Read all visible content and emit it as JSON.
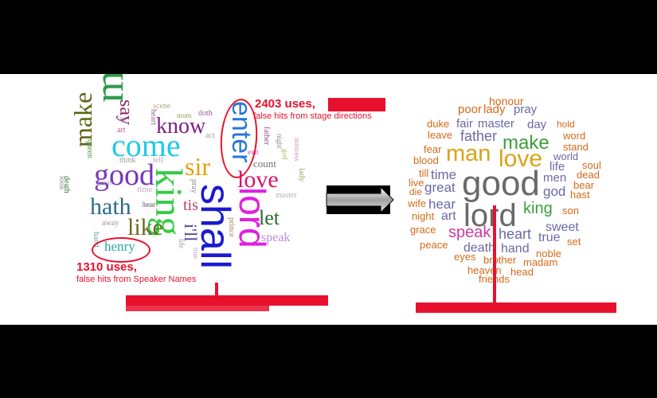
{
  "left_cloud": {
    "words": [
      {
        "t": "man",
        "c": "#2f9a4d"
      },
      {
        "t": "make",
        "c": "#5c6410"
      },
      {
        "t": "say",
        "c": "#8a2470"
      },
      {
        "t": "come",
        "c": "#1ecbe6"
      },
      {
        "t": "know",
        "c": "#7a1f87"
      },
      {
        "t": "good",
        "c": "#7a35b8"
      },
      {
        "t": "sir",
        "c": "#e3a20c"
      },
      {
        "t": "enter",
        "c": "#2678d8"
      },
      {
        "t": "love",
        "c": "#d4176a"
      },
      {
        "t": "hath",
        "c": "#2d6b8a"
      },
      {
        "t": "king",
        "c": "#33cc44"
      },
      {
        "t": "shall",
        "c": "#1a1ad0"
      },
      {
        "t": "lord",
        "c": "#e01fe0"
      },
      {
        "t": "let",
        "c": "#2e6a2e"
      },
      {
        "t": "like",
        "c": "#6a6a20"
      },
      {
        "t": "tis",
        "c": "#b9426a"
      },
      {
        "t": "i'll",
        "c": "#4a4aa0"
      },
      {
        "t": "speak",
        "c": "#b58de0"
      },
      {
        "t": "henry",
        "c": "#2aa6a6"
      },
      {
        "t": "scene",
        "c": "#b0a880"
      },
      {
        "t": "mum",
        "c": "#a0a060"
      },
      {
        "t": "doth",
        "c": "#9a5aa0"
      },
      {
        "t": "heart",
        "c": "#9a6a9a"
      },
      {
        "t": "ay",
        "c": "#9a8aa0"
      },
      {
        "t": "art",
        "c": "#c06090"
      },
      {
        "t": "queen",
        "c": "#4a9a4a"
      },
      {
        "t": "think",
        "c": "#9a9a9a"
      },
      {
        "t": "tell",
        "c": "#c0a0c0"
      },
      {
        "t": "act",
        "c": "#a0a0a0"
      },
      {
        "t": "time",
        "c": "#c0b0c0"
      },
      {
        "t": "lady",
        "c": "#a0a060"
      },
      {
        "t": "father",
        "c": "#9a4a9a"
      },
      {
        "t": "exit",
        "c": "#c040c0"
      },
      {
        "t": "night",
        "c": "#8a8a8a"
      },
      {
        "t": "god",
        "c": "#b0b050"
      },
      {
        "t": "count",
        "c": "#707070"
      },
      {
        "t": "mistress",
        "c": "#d090b0"
      },
      {
        "t": "master",
        "c": "#b0b0b0"
      },
      {
        "t": "pray",
        "c": "#8a8a8a"
      },
      {
        "t": "prince",
        "c": "#a08a60"
      },
      {
        "t": "true",
        "c": "#c0a0c0"
      },
      {
        "t": "hear",
        "c": "#a0a0a0"
      },
      {
        "t": "look",
        "c": "#909090"
      },
      {
        "t": "death",
        "c": "#3a7a3a"
      },
      {
        "t": "away",
        "c": "#a09090"
      },
      {
        "t": "hand",
        "c": "#7aa0a0"
      },
      {
        "t": "life",
        "c": "#9a9a9a"
      },
      {
        "t": "great",
        "c": "#b0a0b0"
      },
      {
        "t": "hear",
        "c": "#9a9a9a"
      }
    ],
    "annotations": {
      "top_count": "2403 uses,",
      "top_desc": "false hits from stage directions",
      "bottom_count": "1310 uses,",
      "bottom_desc": "false hits from Speaker Names"
    }
  },
  "arrow_icon": "right-arrow-icon",
  "right_cloud": {
    "words": [
      {
        "t": "honour",
        "c": "#d46a1a"
      },
      {
        "t": "poor",
        "c": "#d46a1a"
      },
      {
        "t": "lady",
        "c": "#d46a1a"
      },
      {
        "t": "pray",
        "c": "#6a6aa6"
      },
      {
        "t": "duke",
        "c": "#d46a1a"
      },
      {
        "t": "fair",
        "c": "#6a6aa6"
      },
      {
        "t": "master",
        "c": "#6a6aa6"
      },
      {
        "t": "day",
        "c": "#6a6aa6"
      },
      {
        "t": "hold",
        "c": "#d46a1a"
      },
      {
        "t": "leave",
        "c": "#d46a1a"
      },
      {
        "t": "father",
        "c": "#6a6aa6"
      },
      {
        "t": "make",
        "c": "#3aa03a"
      },
      {
        "t": "word",
        "c": "#d46a1a"
      },
      {
        "t": "fear",
        "c": "#d46a1a"
      },
      {
        "t": "man",
        "c": "#d9a21a"
      },
      {
        "t": "love",
        "c": "#d9a21a"
      },
      {
        "t": "stand",
        "c": "#d46a1a"
      },
      {
        "t": "blood",
        "c": "#d46a1a"
      },
      {
        "t": "world",
        "c": "#6a6aa6"
      },
      {
        "t": "life",
        "c": "#6a6aa6"
      },
      {
        "t": "soul",
        "c": "#d46a1a"
      },
      {
        "t": "till",
        "c": "#d46a1a"
      },
      {
        "t": "time",
        "c": "#6a6aa6"
      },
      {
        "t": "good",
        "c": "#6a6a6a"
      },
      {
        "t": "men",
        "c": "#6a6aa6"
      },
      {
        "t": "dead",
        "c": "#d46a1a"
      },
      {
        "t": "live",
        "c": "#d46a1a"
      },
      {
        "t": "bear",
        "c": "#d46a1a"
      },
      {
        "t": "die",
        "c": "#d46a1a"
      },
      {
        "t": "great",
        "c": "#6a6aa6"
      },
      {
        "t": "god",
        "c": "#6a6aa6"
      },
      {
        "t": "hast",
        "c": "#d46a1a"
      },
      {
        "t": "wife",
        "c": "#d46a1a"
      },
      {
        "t": "hear",
        "c": "#6a6aa6"
      },
      {
        "t": "king",
        "c": "#3aa03a"
      },
      {
        "t": "son",
        "c": "#d46a1a"
      },
      {
        "t": "night",
        "c": "#d46a1a"
      },
      {
        "t": "art",
        "c": "#6a6aa6"
      },
      {
        "t": "lord",
        "c": "#6a6a6a"
      },
      {
        "t": "sweet",
        "c": "#6a6aa6"
      },
      {
        "t": "grace",
        "c": "#d46a1a"
      },
      {
        "t": "speak",
        "c": "#c93aa0"
      },
      {
        "t": "heart",
        "c": "#6a6aa6"
      },
      {
        "t": "true",
        "c": "#6a6aa6"
      },
      {
        "t": "set",
        "c": "#d46a1a"
      },
      {
        "t": "peace",
        "c": "#d46a1a"
      },
      {
        "t": "death",
        "c": "#6a6aa6"
      },
      {
        "t": "hand",
        "c": "#6a6aa6"
      },
      {
        "t": "noble",
        "c": "#d46a1a"
      },
      {
        "t": "eyes",
        "c": "#d46a1a"
      },
      {
        "t": "brother",
        "c": "#d46a1a"
      },
      {
        "t": "madam",
        "c": "#d46a1a"
      },
      {
        "t": "heaven",
        "c": "#d46a1a"
      },
      {
        "t": "head",
        "c": "#d46a1a"
      },
      {
        "t": "friends",
        "c": "#d46a1a"
      }
    ]
  }
}
